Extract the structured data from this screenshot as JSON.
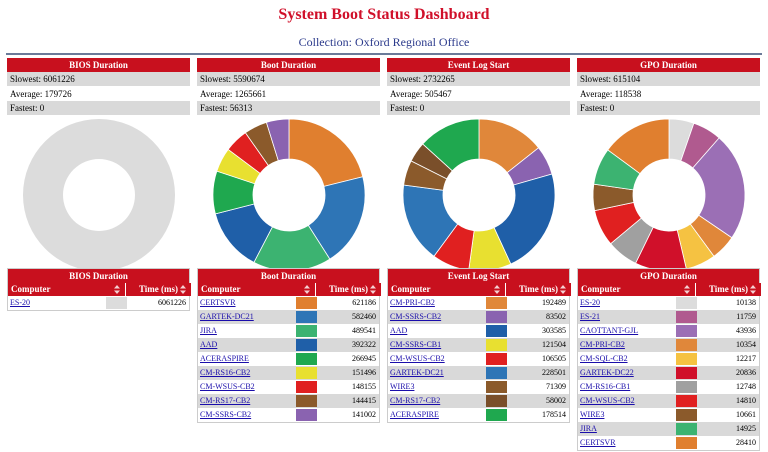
{
  "header": {
    "title": "System Boot Status Dashboard",
    "subtitle": "Collection: Oxford Regional Office"
  },
  "panels": [
    {
      "title": "BIOS Duration",
      "stats": [
        "Slowest: 6061226",
        "Average: 179726",
        "Fastest: 0"
      ],
      "table": {
        "title": "BIOS Duration",
        "columns": [
          "Computer",
          "Time (ms)"
        ],
        "rows": [
          {
            "computer": "ES-20",
            "color": "#dcdcdc",
            "time": 6061226
          }
        ]
      }
    },
    {
      "title": "Boot Duration",
      "stats": [
        "Slowest: 5590674",
        "Average: 1265661",
        "Fastest: 56313"
      ],
      "table": {
        "title": "Boot Duration",
        "columns": [
          "Computer",
          "Time (ms)"
        ],
        "rows": [
          {
            "computer": "CERTSVR",
            "color": "#e07f2f",
            "time": 621186
          },
          {
            "computer": "GARTEK-DC21",
            "color": "#2e75b6",
            "time": 582460
          },
          {
            "computer": "JIRA",
            "color": "#3cb371",
            "time": 489541
          },
          {
            "computer": "AAD",
            "color": "#1f5fa8",
            "time": 392322
          },
          {
            "computer": "ACERASPIRE",
            "color": "#1fa84f",
            "time": 266945
          },
          {
            "computer": "CM-RS16-CB2",
            "color": "#e8e030",
            "time": 151496
          },
          {
            "computer": "CM-WSUS-CB2",
            "color": "#e02020",
            "time": 148155
          },
          {
            "computer": "CM-RS17-CB2",
            "color": "#8b5a2b",
            "time": 144415
          },
          {
            "computer": "CM-SSRS-CB2",
            "color": "#8a63b0",
            "time": 141002
          }
        ]
      }
    },
    {
      "title": "Event Log Start",
      "stats": [
        "Slowest: 2732265",
        "Average: 505467",
        "Fastest: 0"
      ],
      "table": {
        "title": "Event Log Start",
        "columns": [
          "Computer",
          "Time (ms)"
        ],
        "rows": [
          {
            "computer": "CM-PRI-CB2",
            "color": "#e0873a",
            "time": 192489
          },
          {
            "computer": "CM-SSRS-CB2",
            "color": "#8a63b0",
            "time": 83502
          },
          {
            "computer": "AAD",
            "color": "#1f5fa8",
            "time": 303585
          },
          {
            "computer": "CM-SSRS-CB1",
            "color": "#e8e030",
            "time": 121504
          },
          {
            "computer": "CM-WSUS-CB2",
            "color": "#e02020",
            "time": 106505
          },
          {
            "computer": "GARTEK-DC21",
            "color": "#2e75b6",
            "time": 228501
          },
          {
            "computer": "WIRE3",
            "color": "#8b5a2b",
            "time": 71309
          },
          {
            "computer": "CM-RS17-CB2",
            "color": "#7a4f2a",
            "time": 58002
          },
          {
            "computer": "ACERASPIRE",
            "color": "#1fa84f",
            "time": 178514
          }
        ]
      }
    },
    {
      "title": "GPO Duration",
      "stats": [
        "Slowest: 615104",
        "Average: 118538",
        "Fastest: 0"
      ],
      "table": {
        "title": "GPO Duration",
        "columns": [
          "Computer",
          "Time (ms)"
        ],
        "rows": [
          {
            "computer": "ES-20",
            "color": "#dcdcdc",
            "time": 10138
          },
          {
            "computer": "ES-21",
            "color": "#b05a8f",
            "time": 11759
          },
          {
            "computer": "CAOTTANT-GJL",
            "color": "#9b6fb5",
            "time": 43936
          },
          {
            "computer": "CM-PRI-CB2",
            "color": "#e0873a",
            "time": 10354
          },
          {
            "computer": "CM-SQL-CB2",
            "color": "#f5c242",
            "time": 12217
          },
          {
            "computer": "GARTEK-DC22",
            "color": "#d0102a",
            "time": 20836
          },
          {
            "computer": "CM-RS16-CB1",
            "color": "#a0a0a0",
            "time": 12748
          },
          {
            "computer": "CM-WSUS-CB2",
            "color": "#e02020",
            "time": 14810
          },
          {
            "computer": "WIRE3",
            "color": "#8b5a2b",
            "time": 10661
          },
          {
            "computer": "JIRA",
            "color": "#3cb371",
            "time": 14925
          },
          {
            "computer": "CERTSVR",
            "color": "#e07f2f",
            "time": 28410
          }
        ]
      }
    }
  ]
}
